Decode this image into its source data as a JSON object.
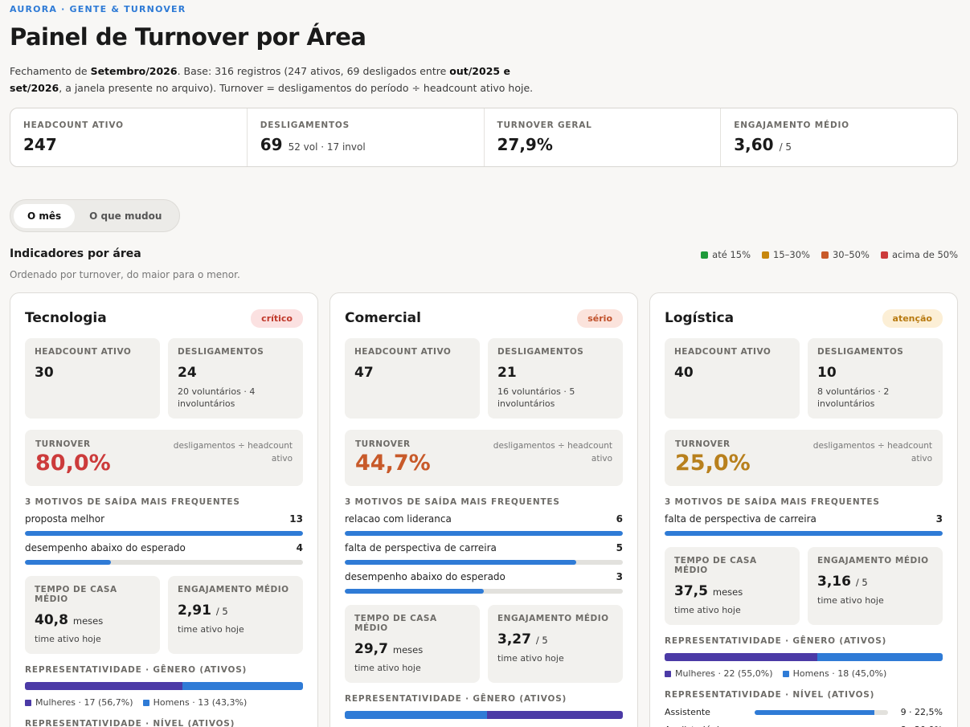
{
  "header": {
    "brand": "AURORA · GENTE & TURNOVER",
    "title": "Painel de Turnover por Área",
    "subtitle_pre": "Fechamento de ",
    "subtitle_bold1": "Setembro/2026",
    "subtitle_mid": ". Base: 316 registros (247 ativos, 69 desligados entre ",
    "subtitle_bold2": "out/2025 e set/2026",
    "subtitle_post": ", a janela presente no arquivo). Turnover = desligamentos do período ÷ headcount ativo hoje."
  },
  "kpis": [
    {
      "label": "HEADCOUNT ATIVO",
      "value": "247",
      "sub": ""
    },
    {
      "label": "DESLIGAMENTOS",
      "value": "69",
      "sub": "52 vol · 17 invol"
    },
    {
      "label": "TURNOVER GERAL",
      "value": "27,9%",
      "sub": ""
    },
    {
      "label": "ENGAJAMENTO MÉDIO",
      "value": "3,60",
      "sub": "/ 5"
    }
  ],
  "tabs": [
    {
      "label": "O mês",
      "active": true
    },
    {
      "label": "O que mudou",
      "active": false
    }
  ],
  "section": {
    "title": "Indicadores por área",
    "subtitle": "Ordenado por turnover, do maior para o menor."
  },
  "legend": [
    {
      "label": "até 15%",
      "color": "#1e9a3a"
    },
    {
      "label": "15–30%",
      "color": "#c7870d"
    },
    {
      "label": "30–50%",
      "color": "#c85a2a"
    },
    {
      "label": "acima de 50%",
      "color": "#cc3b3b"
    }
  ],
  "labels": {
    "headcount": "HEADCOUNT ATIVO",
    "desligamentos": "DESLIGAMENTOS",
    "turnover": "TURNOVER",
    "turnover_note": "desligamentos ÷ headcount ativo",
    "motives": "3 MOTIVOS DE SAÍDA MAIS FREQUENTES",
    "tenure": "TEMPO DE CASA MÉDIO",
    "tenure_unit": "meses",
    "engagement": "ENGAJAMENTO MÉDIO",
    "engagement_unit": "/ 5",
    "active_note": "time ativo hoje",
    "gender": "REPRESENTATIVIDADE · GÊNERO (ATIVOS)",
    "level": "REPRESENTATIVIDADE · NÍVEL (ATIVOS)"
  },
  "colors": {
    "women": "#4b3aa6",
    "men": "#2f7bd6"
  },
  "areas": [
    {
      "name": "Tecnologia",
      "badge": "crítico",
      "badge_bg": "#fbe1e1",
      "badge_fg": "#c0392b",
      "turnover_color": "#cc3b3b",
      "headcount": "30",
      "desligamentos": "24",
      "desl_detail": "20 voluntários · 4 involuntários",
      "turnover": "80,0%",
      "motives": [
        {
          "label": "proposta melhor",
          "count": "13",
          "fraction": 1.0
        },
        {
          "label": "desempenho abaixo do esperado",
          "count": "4",
          "fraction": 0.31
        }
      ],
      "tenure": "40,8",
      "engagement": "2,91",
      "gender": [
        {
          "label": "Mulheres · 17 (56,7%)",
          "key": "women",
          "share": 56.7
        },
        {
          "label": "Homens · 13 (43,3%)",
          "key": "men",
          "share": 43.3
        }
      ],
      "levels": []
    },
    {
      "name": "Comercial",
      "badge": "sério",
      "badge_bg": "#fbe3dc",
      "badge_fg": "#c0512b",
      "turnover_color": "#c85a2a",
      "headcount": "47",
      "desligamentos": "21",
      "desl_detail": "16 voluntários · 5 involuntários",
      "turnover": "44,7%",
      "motives": [
        {
          "label": "relacao com lideranca",
          "count": "6",
          "fraction": 1.0
        },
        {
          "label": "falta de perspectiva de carreira",
          "count": "5",
          "fraction": 0.833
        },
        {
          "label": "desempenho abaixo do esperado",
          "count": "3",
          "fraction": 0.5
        }
      ],
      "tenure": "29,7",
      "engagement": "3,27",
      "gender": [
        {
          "label": "Homens · 24 (51,1%)",
          "key": "men",
          "share": 51.1
        },
        {
          "label": "Mulheres · 23 (48,9%)",
          "key": "women",
          "share": 48.9
        }
      ],
      "levels": []
    },
    {
      "name": "Logística",
      "badge": "atenção",
      "badge_bg": "#fcefd6",
      "badge_fg": "#b87a10",
      "turnover_color": "#b8801d",
      "headcount": "40",
      "desligamentos": "10",
      "desl_detail": "8 voluntários · 2 involuntários",
      "turnover": "25,0%",
      "motives": [
        {
          "label": "falta de perspectiva de carreira",
          "count": "3",
          "fraction": 1.0
        }
      ],
      "tenure": "37,5",
      "engagement": "3,16",
      "gender": [
        {
          "label": "Mulheres · 22 (55,0%)",
          "key": "women",
          "share": 55.0
        },
        {
          "label": "Homens · 18 (45,0%)",
          "key": "men",
          "share": 45.0
        }
      ],
      "levels": [
        {
          "label": "Assistente",
          "value": "9 · 22,5%",
          "fraction": 0.9
        },
        {
          "label": "Analista Júnior",
          "value": "8 · 20,0%",
          "fraction": 0.8
        }
      ]
    }
  ]
}
